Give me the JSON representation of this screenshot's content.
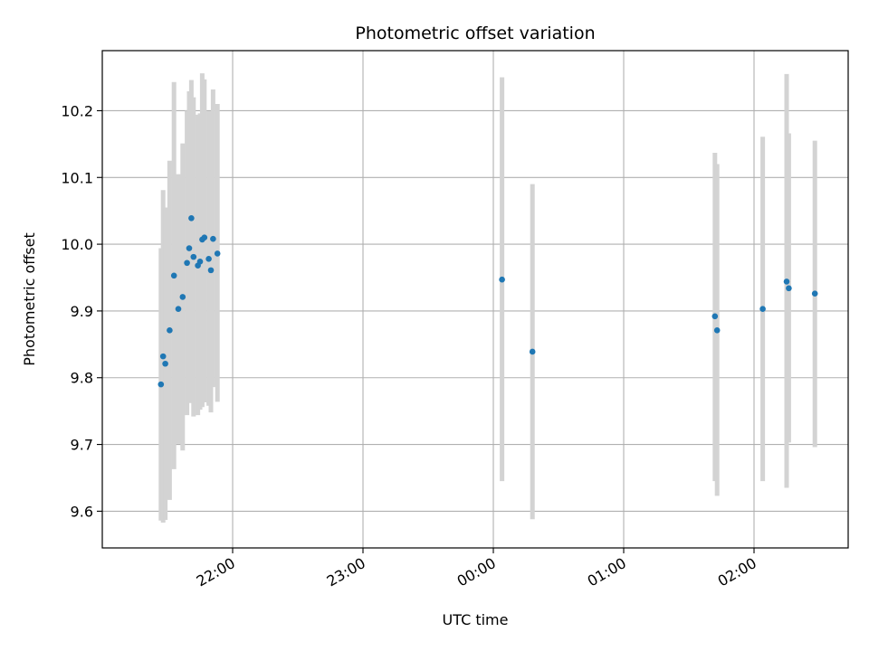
{
  "chart_data": {
    "type": "scatter",
    "title": "Photometric offset variation",
    "xlabel": "UTC time",
    "ylabel": "Photometric offset",
    "x_unit": "UTC time (HH:MM)",
    "x_ticks": [
      "22:00",
      "23:00",
      "00:00",
      "01:00",
      "02:00"
    ],
    "y_ticks": [
      "9.6",
      "9.7",
      "9.8",
      "9.9",
      "10.0",
      "10.1",
      "10.2"
    ],
    "ylim": [
      9.545,
      10.29
    ],
    "xlim": [
      "21:15",
      "03:00"
    ],
    "grid": true,
    "series": [
      {
        "marker_color": "#1f77b4",
        "errorbar_color": "#d3d3d3",
        "points": [
          {
            "x": "21:27",
            "y": 9.79,
            "lo": 9.586,
            "hi": 9.994
          },
          {
            "x": "21:28",
            "y": 9.832,
            "lo": 9.583,
            "hi": 10.081
          },
          {
            "x": "21:29",
            "y": 9.821,
            "lo": 9.587,
            "hi": 10.055
          },
          {
            "x": "21:31",
            "y": 9.871,
            "lo": 9.617,
            "hi": 10.125
          },
          {
            "x": "21:33",
            "y": 9.953,
            "lo": 9.663,
            "hi": 10.243
          },
          {
            "x": "21:35",
            "y": 9.903,
            "lo": 9.701,
            "hi": 10.105
          },
          {
            "x": "21:37",
            "y": 9.921,
            "lo": 9.691,
            "hi": 10.151
          },
          {
            "x": "21:39",
            "y": 9.972,
            "lo": 9.744,
            "hi": 10.2
          },
          {
            "x": "21:40",
            "y": 9.994,
            "lo": 9.762,
            "hi": 10.229
          },
          {
            "x": "21:41",
            "y": 10.039,
            "lo": 9.833,
            "hi": 10.246
          },
          {
            "x": "21:42",
            "y": 9.981,
            "lo": 9.742,
            "hi": 10.22
          },
          {
            "x": "21:44",
            "y": 9.968,
            "lo": 9.744,
            "hi": 10.194
          },
          {
            "x": "21:45",
            "y": 9.974,
            "lo": 9.752,
            "hi": 10.196
          },
          {
            "x": "21:46",
            "y": 10.007,
            "lo": 9.756,
            "hi": 10.256
          },
          {
            "x": "21:47",
            "y": 10.01,
            "lo": 9.763,
            "hi": 10.247
          },
          {
            "x": "21:49",
            "y": 9.978,
            "lo": 9.758,
            "hi": 10.199
          },
          {
            "x": "21:50",
            "y": 9.961,
            "lo": 9.748,
            "hi": 10.178
          },
          {
            "x": "21:51",
            "y": 10.008,
            "lo": 9.786,
            "hi": 10.232
          },
          {
            "x": "21:53",
            "y": 9.986,
            "lo": 9.764,
            "hi": 10.21
          },
          {
            "x": "00:04",
            "y": 9.947,
            "lo": 9.645,
            "hi": 10.25
          },
          {
            "x": "00:18",
            "y": 9.839,
            "lo": 9.588,
            "hi": 10.09
          },
          {
            "x": "01:42",
            "y": 9.892,
            "lo": 9.645,
            "hi": 10.137
          },
          {
            "x": "01:43",
            "y": 9.871,
            "lo": 9.623,
            "hi": 10.12
          },
          {
            "x": "02:04",
            "y": 9.903,
            "lo": 9.645,
            "hi": 10.161
          },
          {
            "x": "02:15",
            "y": 9.944,
            "lo": 9.635,
            "hi": 10.255
          },
          {
            "x": "02:16",
            "y": 9.934,
            "lo": 9.703,
            "hi": 10.166
          },
          {
            "x": "02:28",
            "y": 9.926,
            "lo": 9.696,
            "hi": 10.155
          }
        ]
      }
    ]
  }
}
